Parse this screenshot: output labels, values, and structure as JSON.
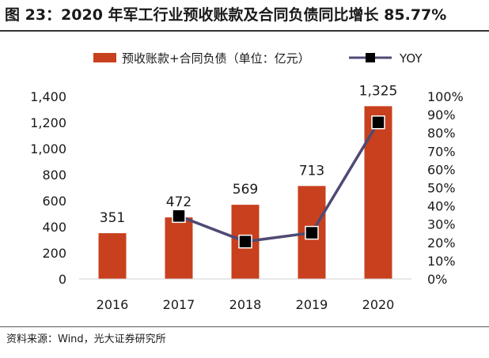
{
  "figure": {
    "title": "图 23：2020 年军工行业预收账款及合同负债同比增长 85.77%",
    "source": "资料来源：Wind，光大证券研究所"
  },
  "colors": {
    "bar": "#C8401E",
    "line": "#4F4A74",
    "marker": "#000000",
    "axis": "#d0d0d0"
  },
  "chart_data": {
    "type": "bar",
    "categories": [
      "2016",
      "2017",
      "2018",
      "2019",
      "2020"
    ],
    "series": [
      {
        "name": "预收账款+合同负债（单位：亿元）",
        "type": "bar",
        "axis": "left",
        "values": [
          351,
          472,
          569,
          713,
          1325
        ],
        "labels": [
          "351",
          "472",
          "569",
          "713",
          "1,325"
        ]
      },
      {
        "name": "YOY",
        "type": "line",
        "axis": "right",
        "values": [
          null,
          0.345,
          0.205,
          0.253,
          0.858
        ]
      }
    ],
    "ylim": [
      0,
      1400
    ],
    "yticks": [
      0,
      200,
      400,
      600,
      800,
      1000,
      1200,
      1400
    ],
    "ytick_labels": [
      "0",
      "200",
      "400",
      "600",
      "800",
      "1,000",
      "1,200",
      "1,400"
    ],
    "y2lim": [
      0,
      1
    ],
    "y2ticks": [
      0,
      0.1,
      0.2,
      0.3,
      0.4,
      0.5,
      0.6,
      0.7,
      0.8,
      0.9,
      1.0
    ],
    "y2tick_labels": [
      "0%",
      "10%",
      "20%",
      "30%",
      "40%",
      "50%",
      "60%",
      "70%",
      "80%",
      "90%",
      "100%"
    ],
    "legend_position": "top",
    "grid": false
  }
}
